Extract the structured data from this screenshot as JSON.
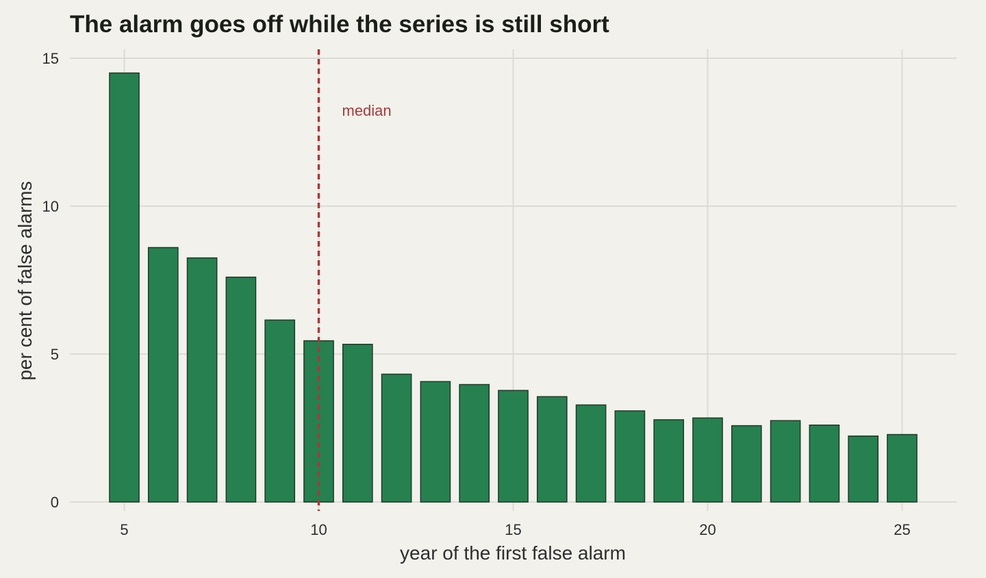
{
  "chart_data": {
    "type": "bar",
    "title": "The alarm goes off while the series is still short",
    "xlabel": "year of the first false alarm",
    "ylabel": "per cent of false alarms",
    "x": [
      5,
      6,
      7,
      8,
      9,
      10,
      11,
      12,
      13,
      14,
      15,
      16,
      17,
      18,
      19,
      20,
      21,
      22,
      23,
      24,
      25
    ],
    "values": [
      14.5,
      8.6,
      8.25,
      7.6,
      6.15,
      5.45,
      5.33,
      4.32,
      4.07,
      3.97,
      3.77,
      3.56,
      3.28,
      3.08,
      2.78,
      2.84,
      2.58,
      2.75,
      2.6,
      2.23,
      2.28
    ],
    "xlim": [
      3.6,
      26.4
    ],
    "ylim": [
      -0.3,
      15.3
    ],
    "xticks": [
      5,
      10,
      15,
      20,
      25
    ],
    "yticks": [
      0,
      5,
      10,
      15
    ],
    "grid": true,
    "bar_color": "#27804f",
    "bar_edge_color": "#1d3a29",
    "reference_line": {
      "x": 10,
      "label": "median",
      "color": "#a83a3a"
    }
  }
}
